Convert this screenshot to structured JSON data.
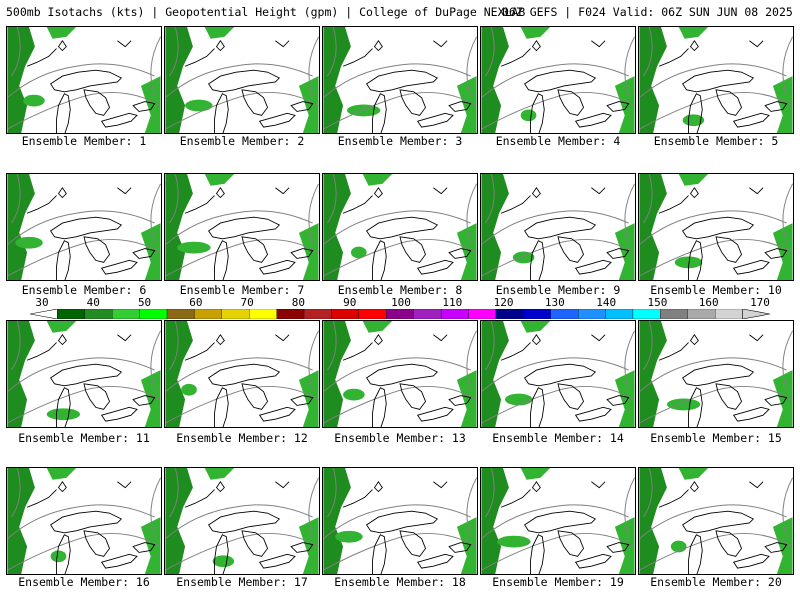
{
  "header": {
    "title_left": "500mb Isotachs (kts) | Geopotential Height (gpm) | College of DuPage NEXLAB",
    "title_right": "06Z GEFS | F024 Valid: 06Z SUN JUN 08 2025"
  },
  "panel_label_prefix": "Ensemble Member: ",
  "members": [
    {
      "label": "Ensemble Member: 1",
      "member": 1
    },
    {
      "label": "Ensemble Member: 2",
      "member": 2
    },
    {
      "label": "Ensemble Member: 3",
      "member": 3
    },
    {
      "label": "Ensemble Member: 4",
      "member": 4
    },
    {
      "label": "Ensemble Member: 5",
      "member": 5
    },
    {
      "label": "Ensemble Member: 6",
      "member": 6
    },
    {
      "label": "Ensemble Member: 7",
      "member": 7
    },
    {
      "label": "Ensemble Member: 8",
      "member": 8
    },
    {
      "label": "Ensemble Member: 9",
      "member": 9
    },
    {
      "label": "Ensemble Member: 10",
      "member": 10
    },
    {
      "label": "Ensemble Member: 11",
      "member": 11
    },
    {
      "label": "Ensemble Member: 12",
      "member": 12
    },
    {
      "label": "Ensemble Member: 13",
      "member": 13
    },
    {
      "label": "Ensemble Member: 14",
      "member": 14
    },
    {
      "label": "Ensemble Member: 15",
      "member": 15
    },
    {
      "label": "Ensemble Member: 16",
      "member": 16
    },
    {
      "label": "Ensemble Member: 17",
      "member": 17
    },
    {
      "label": "Ensemble Member: 18",
      "member": 18
    },
    {
      "label": "Ensemble Member: 19",
      "member": 19
    },
    {
      "label": "Ensemble Member: 20",
      "member": 20
    }
  ],
  "colorbar": {
    "ticks": [
      "30",
      "40",
      "50",
      "60",
      "70",
      "80",
      "90",
      "100",
      "110",
      "120",
      "130",
      "140",
      "150",
      "160",
      "170"
    ],
    "colors": [
      "#006400",
      "#228b22",
      "#32cd32",
      "#00ff00",
      "#8b6914",
      "#c8a000",
      "#e6d200",
      "#ffff00",
      "#8b0000",
      "#b22222",
      "#dc0000",
      "#ff0000",
      "#8b008b",
      "#a020c0",
      "#c800ff",
      "#ff00ff",
      "#00008b",
      "#0000cd",
      "#1e64ff",
      "#1e90ff",
      "#00bfff",
      "#00ffff",
      "#808080",
      "#a9a9a9",
      "#d3d3d3"
    ]
  },
  "map_colors": {
    "speed_light": "#32b432",
    "speed_dark": "#1e8c1e",
    "coast": "#000000",
    "height_contour": "#808080"
  }
}
